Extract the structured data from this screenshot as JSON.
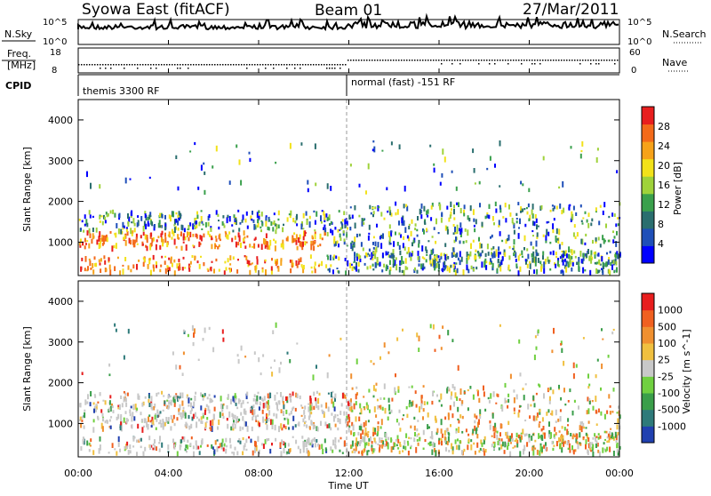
{
  "header": {
    "station": "Syowa East (fitACF)",
    "beam": "Beam 01",
    "date": "27/Mar/2011"
  },
  "noise_panel": {
    "left_label": "N.Sky",
    "left_ticks": [
      "10^5",
      "10^0"
    ],
    "right_ticks": [
      "10^5",
      "10^0"
    ],
    "right_label": "N.Search"
  },
  "freq_panel": {
    "left_label_1": "Freq.",
    "left_label_2": "[MHz]",
    "left_ticks": [
      "18",
      "8"
    ],
    "right_ticks": [
      "60",
      "0"
    ],
    "right_label": "Nave"
  },
  "cpid_panel": {
    "label": "CPID",
    "mode_1": "themis 3300 RF",
    "mode_2": "normal (fast) -151 RF"
  },
  "chart_data": [
    {
      "type": "heatmap",
      "name": "power",
      "ylabel": "Slant Range [km]",
      "ylim": [
        180,
        4500
      ],
      "yticks": [
        1000,
        2000,
        3000,
        4000
      ],
      "xlim_hours": [
        0,
        24
      ],
      "colorbar_label": "Power [dB]",
      "colorbar_ticks": [
        "28",
        "24",
        "20",
        "16",
        "12",
        "8",
        "4"
      ],
      "colorbar_colors": [
        "#0000ff",
        "#1f4fb8",
        "#2a6e6e",
        "#3aa04c",
        "#9fd23a",
        "#f2e21a",
        "#f6a21a",
        "#f36a1a",
        "#e81e1e"
      ],
      "grid": false
    },
    {
      "type": "heatmap",
      "name": "velocity",
      "ylabel": "Slant Range [km]",
      "ylim": [
        180,
        4500
      ],
      "yticks": [
        1000,
        2000,
        3000,
        4000
      ],
      "xlim_hours": [
        0,
        24
      ],
      "colorbar_label": "Velocity [m s^-1]",
      "colorbar_ticks": [
        "1000",
        "500",
        "100",
        "25",
        "-25",
        "-100",
        "-500",
        "-1000"
      ],
      "colorbar_colors": [
        "#2040b0",
        "#2e7a7a",
        "#3a9e4a",
        "#70d040",
        "#c8c8c8",
        "#f0c040",
        "#f09030",
        "#f06020",
        "#e81e1e"
      ],
      "grid": false
    }
  ],
  "x_axis": {
    "ticks": [
      "00:00",
      "04:00",
      "08:00",
      "12:00",
      "16:00",
      "20:00",
      "00:00"
    ],
    "label": "Time UT"
  }
}
